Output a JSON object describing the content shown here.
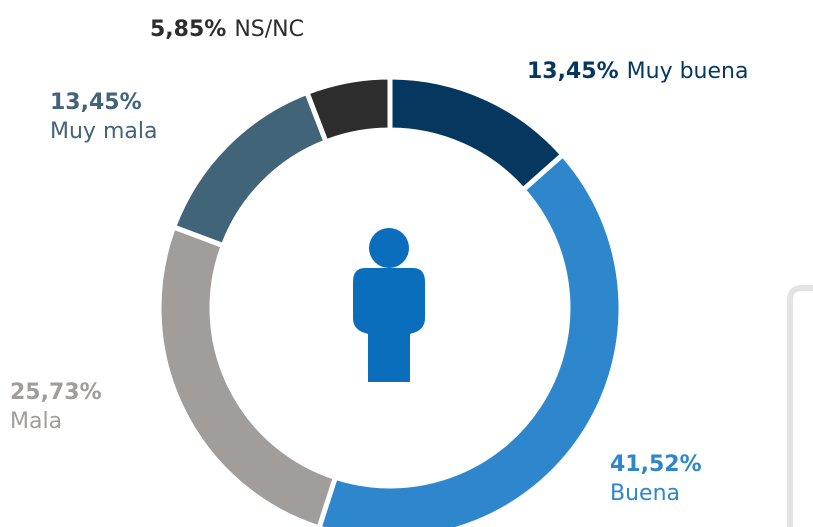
{
  "chart_data": {
    "type": "donut",
    "categories": [
      "Muy buena",
      "Buena",
      "Mala",
      "Muy mala",
      "NS/NC"
    ],
    "values": [
      13.45,
      41.52,
      25.73,
      13.45,
      5.85
    ],
    "value_labels": [
      "13,45%",
      "41,52%",
      "25,73%",
      "13,45%",
      "5,85%"
    ],
    "colors": [
      "#06375f",
      "#2e86cd",
      "#a09d9b",
      "#426478",
      "#2d2d2d"
    ]
  }
}
